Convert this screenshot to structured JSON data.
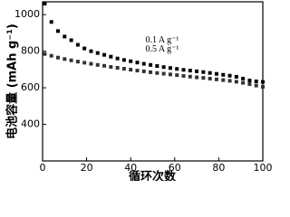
{
  "chart_data": {
    "type": "scatter",
    "xlabel": "循环次数",
    "ylabel": "电池容量 (mAh g⁻¹)",
    "x": [
      1,
      4,
      7,
      10,
      13,
      16,
      19,
      22,
      25,
      28,
      31,
      34,
      37,
      40,
      43,
      46,
      49,
      52,
      55,
      58,
      61,
      64,
      67,
      70,
      73,
      76,
      79,
      82,
      85,
      88,
      91,
      94,
      97,
      100
    ],
    "series": [
      {
        "name": "0.1 A g⁻¹",
        "color": "#000000",
        "values": [
          1060,
          960,
          910,
          880,
          860,
          835,
          815,
          800,
          790,
          780,
          770,
          760,
          752,
          745,
          738,
          731,
          725,
          719,
          713,
          708,
          703,
          698,
          694,
          690,
          686,
          681,
          676,
          671,
          666,
          660,
          650,
          640,
          635,
          632
        ]
      },
      {
        "name": "0.5 A g⁻¹",
        "color": "#333333",
        "values": [
          785,
          775,
          765,
          757,
          750,
          743,
          737,
          731,
          725,
          720,
          714,
          709,
          704,
          699,
          694,
          690,
          685,
          681,
          677,
          673,
          669,
          665,
          661,
          657,
          654,
          650,
          646,
          642,
          638,
          633,
          627,
          620,
          612,
          605
        ]
      }
    ],
    "xlim": [
      0,
      100
    ],
    "xticks": [
      0,
      20,
      40,
      60,
      80,
      100
    ],
    "ylim": [
      200,
      1070
    ],
    "yticks": [
      400,
      600,
      800,
      1000
    ]
  }
}
